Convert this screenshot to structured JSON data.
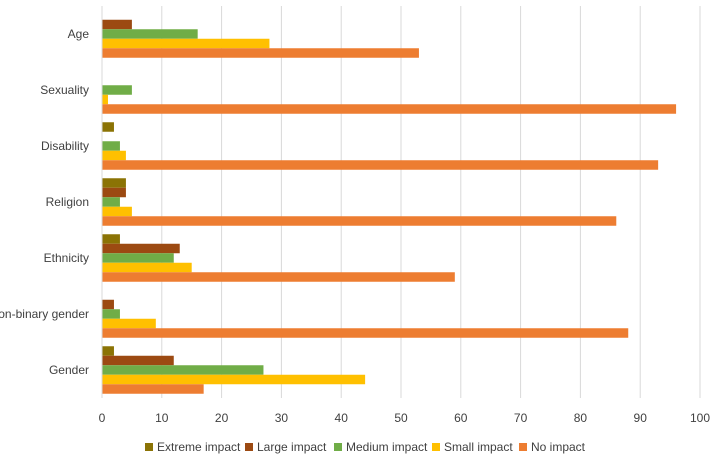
{
  "chart_data": {
    "type": "bar",
    "orientation": "horizontal",
    "title": "",
    "xlabel": "",
    "ylabel": "",
    "xlim": [
      0,
      100
    ],
    "x_ticks": [
      0,
      10,
      20,
      30,
      40,
      50,
      60,
      70,
      80,
      90,
      100
    ],
    "grid": true,
    "legend_position": "bottom",
    "categories": [
      "Age",
      "Sexuality",
      "Disability",
      "Religion",
      "Ethnicity",
      "Non-binary gender",
      "Gender"
    ],
    "series": [
      {
        "name": "Extreme impact",
        "color": "#8B7305",
        "values": [
          0,
          0,
          2,
          4,
          3,
          0,
          2
        ]
      },
      {
        "name": "Large impact",
        "color": "#9C4A12",
        "values": [
          5,
          0,
          0,
          4,
          13,
          2,
          12
        ]
      },
      {
        "name": "Medium impact",
        "color": "#70AD47",
        "values": [
          16,
          5,
          3,
          3,
          12,
          3,
          27
        ]
      },
      {
        "name": "Small impact",
        "color": "#FFC000",
        "values": [
          28,
          1,
          4,
          5,
          15,
          9,
          44
        ]
      },
      {
        "name": "No impact",
        "color": "#ED7D31",
        "values": [
          53,
          96,
          93,
          86,
          59,
          88,
          17
        ]
      }
    ]
  }
}
